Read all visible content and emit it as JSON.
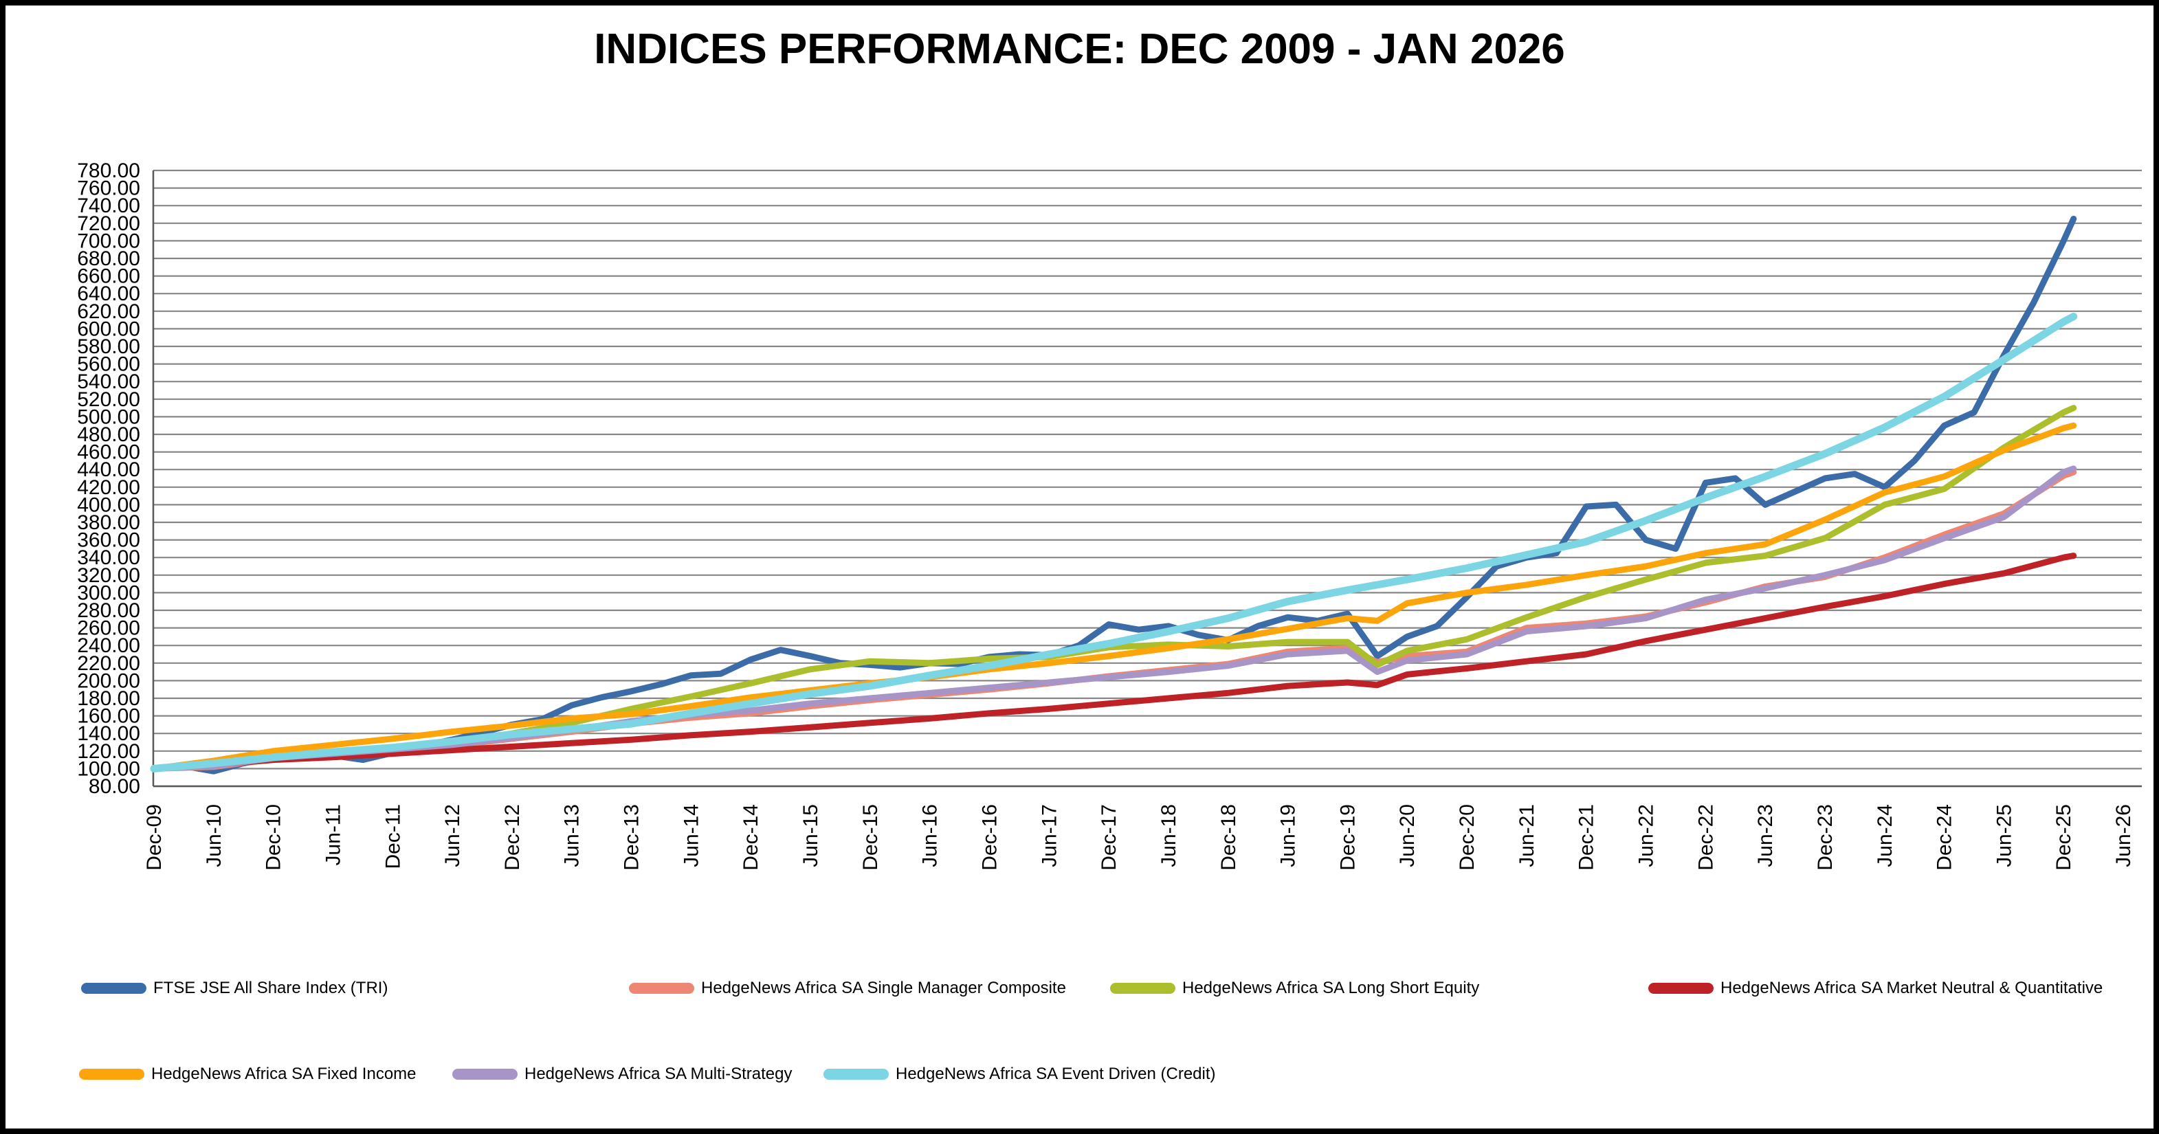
{
  "title": "INDICES PERFORMANCE: DEC 2009 - JAN 2026",
  "chart_data": {
    "type": "line",
    "title": "INDICES PERFORMANCE: DEC 2009 - JAN 2026",
    "xlabel": "",
    "ylabel": "",
    "grid": true,
    "legend_position": "bottom",
    "y_axis": {
      "min": 80,
      "max": 780,
      "step": 20,
      "tick_labels": [
        "780.00",
        "760.00",
        "740.00",
        "720.00",
        "700.00",
        "680.00",
        "660.00",
        "640.00",
        "620.00",
        "600.00",
        "580.00",
        "560.00",
        "540.00",
        "520.00",
        "500.00",
        "480.00",
        "460.00",
        "440.00",
        "420.00",
        "400.00",
        "380.00",
        "360.00",
        "340.00",
        "320.00",
        "300.00",
        "280.00",
        "260.00",
        "240.00",
        "220.00",
        "200.00",
        "180.00",
        "160.00",
        "140.00",
        "120.00",
        "100.00",
        "80.00"
      ]
    },
    "x_axis": {
      "months_per_tick": 6,
      "tick_labels": [
        "Dec-09",
        "Jun-10",
        "Dec-10",
        "Jun-11",
        "Dec-11",
        "Jun-12",
        "Dec-12",
        "Jun-13",
        "Dec-13",
        "Jun-14",
        "Dec-14",
        "Jun-15",
        "Dec-15",
        "Jun-16",
        "Dec-16",
        "Jun-17",
        "Dec-17",
        "Jun-18",
        "Dec-18",
        "Jun-19",
        "Dec-19",
        "Jun-20",
        "Dec-20",
        "Jun-21",
        "Dec-21",
        "Jun-22",
        "Dec-22",
        "Jun-23",
        "Dec-23",
        "Jun-24",
        "Dec-24",
        "Jun-25",
        "Dec-25",
        "Jun-26"
      ]
    },
    "note": "points are [monthsSinceDec09, indexValue]; values estimated from pixels; data ends Jan-26 (month 193)",
    "series": [
      {
        "name": "FTSE JSE All Share Index (TRI)",
        "color": "#3C6CA8",
        "width": 9,
        "points": [
          [
            0,
            100
          ],
          [
            3,
            103
          ],
          [
            6,
            97
          ],
          [
            9,
            106
          ],
          [
            12,
            113
          ],
          [
            15,
            116
          ],
          [
            18,
            115
          ],
          [
            21,
            110
          ],
          [
            24,
            118
          ],
          [
            27,
            126
          ],
          [
            30,
            133
          ],
          [
            33,
            141
          ],
          [
            36,
            150
          ],
          [
            39,
            156
          ],
          [
            42,
            172
          ],
          [
            45,
            181
          ],
          [
            48,
            188
          ],
          [
            51,
            196
          ],
          [
            54,
            206
          ],
          [
            57,
            208
          ],
          [
            60,
            224
          ],
          [
            63,
            235
          ],
          [
            66,
            228
          ],
          [
            69,
            220
          ],
          [
            72,
            218
          ],
          [
            75,
            215
          ],
          [
            78,
            220
          ],
          [
            81,
            219
          ],
          [
            84,
            227
          ],
          [
            87,
            230
          ],
          [
            90,
            229
          ],
          [
            93,
            240
          ],
          [
            96,
            264
          ],
          [
            99,
            258
          ],
          [
            102,
            262
          ],
          [
            105,
            252
          ],
          [
            108,
            246
          ],
          [
            111,
            262
          ],
          [
            114,
            272
          ],
          [
            117,
            268
          ],
          [
            120,
            276
          ],
          [
            123,
            228
          ],
          [
            126,
            250
          ],
          [
            129,
            262
          ],
          [
            132,
            295
          ],
          [
            135,
            330
          ],
          [
            138,
            340
          ],
          [
            141,
            345
          ],
          [
            144,
            398
          ],
          [
            147,
            400
          ],
          [
            150,
            360
          ],
          [
            153,
            350
          ],
          [
            156,
            425
          ],
          [
            159,
            430
          ],
          [
            162,
            400
          ],
          [
            165,
            415
          ],
          [
            168,
            430
          ],
          [
            171,
            435
          ],
          [
            174,
            420
          ],
          [
            177,
            450
          ],
          [
            180,
            490
          ],
          [
            183,
            505
          ],
          [
            186,
            570
          ],
          [
            189,
            630
          ],
          [
            192,
            700
          ],
          [
            193,
            725
          ]
        ]
      },
      {
        "name": "HedgeNews Africa SA Single Manager Composite",
        "color": "#EE8674",
        "width": 9,
        "points": [
          [
            0,
            100
          ],
          [
            6,
            102
          ],
          [
            12,
            111
          ],
          [
            18,
            116
          ],
          [
            24,
            121
          ],
          [
            30,
            126
          ],
          [
            36,
            134
          ],
          [
            42,
            142
          ],
          [
            48,
            151
          ],
          [
            54,
            158
          ],
          [
            60,
            163
          ],
          [
            66,
            171
          ],
          [
            72,
            178
          ],
          [
            78,
            184
          ],
          [
            84,
            190
          ],
          [
            90,
            197
          ],
          [
            96,
            205
          ],
          [
            102,
            212
          ],
          [
            108,
            219
          ],
          [
            114,
            233
          ],
          [
            120,
            237
          ],
          [
            123,
            221
          ],
          [
            126,
            228
          ],
          [
            132,
            233
          ],
          [
            138,
            260
          ],
          [
            144,
            265
          ],
          [
            150,
            273
          ],
          [
            156,
            289
          ],
          [
            162,
            307
          ],
          [
            168,
            318
          ],
          [
            174,
            340
          ],
          [
            180,
            366
          ],
          [
            186,
            390
          ],
          [
            192,
            433
          ],
          [
            193,
            437
          ]
        ]
      },
      {
        "name": "HedgeNews Africa SA Long Short Equity",
        "color": "#ACBE2C",
        "width": 9,
        "points": [
          [
            0,
            100
          ],
          [
            6,
            103
          ],
          [
            12,
            112
          ],
          [
            18,
            117
          ],
          [
            24,
            120
          ],
          [
            30,
            128
          ],
          [
            36,
            140
          ],
          [
            42,
            152
          ],
          [
            48,
            168
          ],
          [
            54,
            182
          ],
          [
            60,
            197
          ],
          [
            66,
            213
          ],
          [
            72,
            222
          ],
          [
            78,
            220
          ],
          [
            84,
            225
          ],
          [
            90,
            227
          ],
          [
            96,
            238
          ],
          [
            102,
            241
          ],
          [
            108,
            239
          ],
          [
            114,
            244
          ],
          [
            120,
            244
          ],
          [
            123,
            218
          ],
          [
            126,
            234
          ],
          [
            132,
            247
          ],
          [
            138,
            272
          ],
          [
            144,
            295
          ],
          [
            150,
            315
          ],
          [
            156,
            334
          ],
          [
            162,
            342
          ],
          [
            168,
            362
          ],
          [
            174,
            400
          ],
          [
            180,
            418
          ],
          [
            186,
            465
          ],
          [
            192,
            505
          ],
          [
            193,
            510
          ]
        ]
      },
      {
        "name": "HedgeNews Africa SA Market Neutral & Quantitative",
        "color": "#BE2126",
        "width": 9,
        "points": [
          [
            0,
            100
          ],
          [
            6,
            104
          ],
          [
            12,
            110
          ],
          [
            18,
            113
          ],
          [
            24,
            117
          ],
          [
            30,
            121
          ],
          [
            36,
            125
          ],
          [
            42,
            129
          ],
          [
            48,
            133
          ],
          [
            54,
            138
          ],
          [
            60,
            142
          ],
          [
            66,
            147
          ],
          [
            72,
            152
          ],
          [
            78,
            157
          ],
          [
            84,
            163
          ],
          [
            90,
            168
          ],
          [
            96,
            174
          ],
          [
            102,
            180
          ],
          [
            108,
            186
          ],
          [
            114,
            194
          ],
          [
            120,
            198
          ],
          [
            123,
            195
          ],
          [
            126,
            207
          ],
          [
            132,
            214
          ],
          [
            138,
            222
          ],
          [
            144,
            230
          ],
          [
            150,
            245
          ],
          [
            156,
            258
          ],
          [
            162,
            271
          ],
          [
            168,
            284
          ],
          [
            174,
            296
          ],
          [
            180,
            310
          ],
          [
            186,
            322
          ],
          [
            192,
            340
          ],
          [
            193,
            342
          ]
        ]
      },
      {
        "name": "HedgeNews Africa SA Fixed Income",
        "color": "#FCA50A",
        "width": 9,
        "points": [
          [
            0,
            100
          ],
          [
            6,
            109
          ],
          [
            12,
            120
          ],
          [
            18,
            127
          ],
          [
            24,
            134
          ],
          [
            30,
            142
          ],
          [
            36,
            149
          ],
          [
            42,
            157
          ],
          [
            48,
            162
          ],
          [
            54,
            171
          ],
          [
            60,
            181
          ],
          [
            66,
            189
          ],
          [
            72,
            197
          ],
          [
            78,
            204
          ],
          [
            84,
            213
          ],
          [
            90,
            220
          ],
          [
            96,
            228
          ],
          [
            102,
            237
          ],
          [
            108,
            247
          ],
          [
            114,
            259
          ],
          [
            120,
            271
          ],
          [
            123,
            268
          ],
          [
            126,
            288
          ],
          [
            132,
            300
          ],
          [
            138,
            309
          ],
          [
            144,
            320
          ],
          [
            150,
            330
          ],
          [
            156,
            345
          ],
          [
            162,
            355
          ],
          [
            168,
            383
          ],
          [
            174,
            414
          ],
          [
            180,
            432
          ],
          [
            186,
            462
          ],
          [
            192,
            487
          ],
          [
            193,
            490
          ]
        ]
      },
      {
        "name": "HedgeNews Africa SA Multi-Strategy",
        "color": "#A795C8",
        "width": 9,
        "points": [
          [
            0,
            100
          ],
          [
            6,
            103
          ],
          [
            12,
            112
          ],
          [
            18,
            117
          ],
          [
            24,
            122
          ],
          [
            30,
            127
          ],
          [
            36,
            135
          ],
          [
            42,
            144
          ],
          [
            48,
            154
          ],
          [
            54,
            161
          ],
          [
            60,
            166
          ],
          [
            66,
            174
          ],
          [
            72,
            180
          ],
          [
            78,
            186
          ],
          [
            84,
            192
          ],
          [
            90,
            198
          ],
          [
            96,
            204
          ],
          [
            102,
            210
          ],
          [
            108,
            217
          ],
          [
            114,
            230
          ],
          [
            120,
            234
          ],
          [
            123,
            210
          ],
          [
            126,
            223
          ],
          [
            132,
            230
          ],
          [
            138,
            256
          ],
          [
            144,
            262
          ],
          [
            150,
            271
          ],
          [
            156,
            292
          ],
          [
            162,
            305
          ],
          [
            168,
            320
          ],
          [
            174,
            337
          ],
          [
            180,
            362
          ],
          [
            186,
            386
          ],
          [
            192,
            437
          ],
          [
            193,
            441
          ]
        ]
      },
      {
        "name": "HedgeNews Africa SA Event Driven (Credit)",
        "color": "#7CD5E2",
        "width": 11,
        "points": [
          [
            0,
            100
          ],
          [
            6,
            106
          ],
          [
            12,
            113
          ],
          [
            18,
            119
          ],
          [
            24,
            124
          ],
          [
            30,
            131
          ],
          [
            36,
            139
          ],
          [
            42,
            145
          ],
          [
            48,
            151
          ],
          [
            54,
            163
          ],
          [
            60,
            174
          ],
          [
            66,
            185
          ],
          [
            72,
            194
          ],
          [
            78,
            206
          ],
          [
            84,
            217
          ],
          [
            90,
            230
          ],
          [
            96,
            242
          ],
          [
            102,
            256
          ],
          [
            108,
            271
          ],
          [
            114,
            290
          ],
          [
            120,
            303
          ],
          [
            126,
            315
          ],
          [
            132,
            328
          ],
          [
            138,
            343
          ],
          [
            144,
            358
          ],
          [
            150,
            382
          ],
          [
            156,
            408
          ],
          [
            162,
            432
          ],
          [
            168,
            458
          ],
          [
            174,
            488
          ],
          [
            180,
            523
          ],
          [
            186,
            565
          ],
          [
            192,
            608
          ],
          [
            193,
            614
          ]
        ]
      }
    ]
  },
  "legend": {
    "row1": [
      0,
      1,
      2,
      3
    ],
    "row2": [
      4,
      5,
      6
    ]
  },
  "colors": {
    "gridline": "#878787",
    "axis": "#595959",
    "text": "#000000"
  }
}
